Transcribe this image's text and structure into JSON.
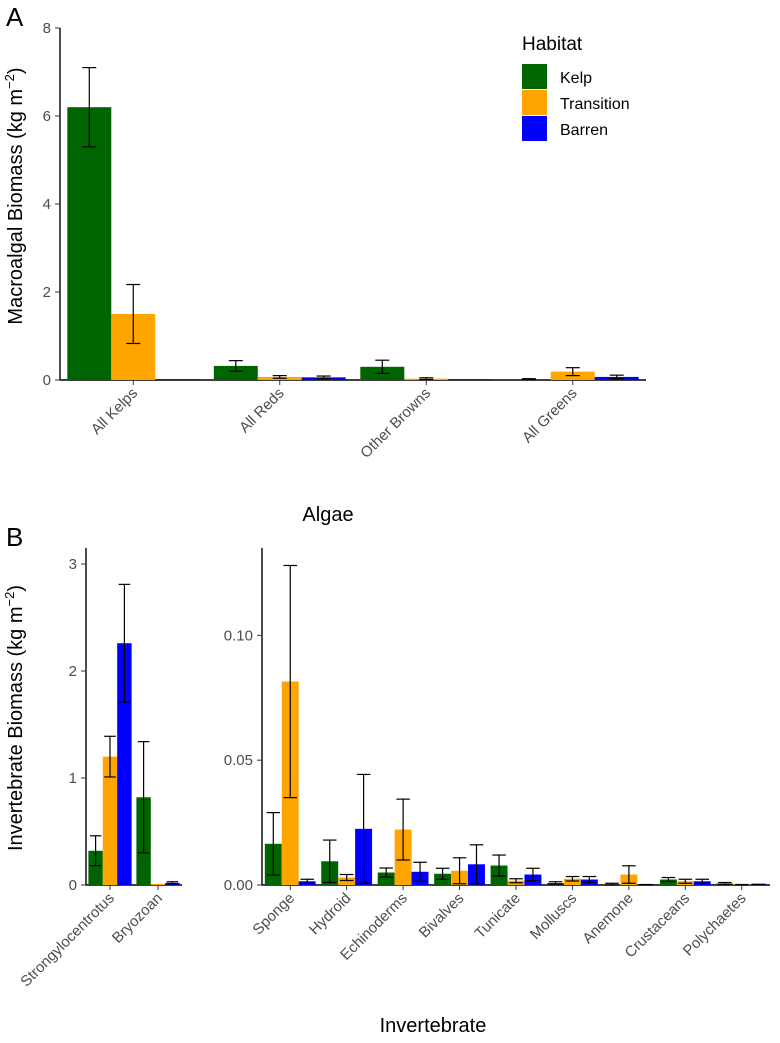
{
  "legend": {
    "title": "Habitat",
    "items": [
      {
        "label": "Kelp",
        "color": "#006400"
      },
      {
        "label": "Transition",
        "color": "#FFA500"
      },
      {
        "label": "Barren",
        "color": "#0000FF"
      }
    ]
  },
  "chart_data": [
    {
      "panel": "A",
      "type": "bar",
      "xlabel": "Algae",
      "ylabel_main": "Macroalgal Biomass (kg m",
      "ylabel_exp": "−2",
      "ylabel_close": ")",
      "ylim": [
        0,
        8
      ],
      "yticks": [
        0,
        2,
        4,
        6,
        8
      ],
      "ytick_labels": [
        "0",
        "2",
        "4",
        "6",
        "8"
      ],
      "categories": [
        "All Kelps",
        "All Reds",
        "Other Browns",
        "All Greens"
      ],
      "series": [
        {
          "name": "Kelp",
          "values": [
            6.2,
            0.32,
            0.3,
            0.02
          ],
          "err": [
            0.9,
            0.12,
            0.15,
            0.01
          ]
        },
        {
          "name": "Transition",
          "values": [
            1.5,
            0.07,
            0.03,
            0.19
          ],
          "err": [
            0.67,
            0.03,
            0.02,
            0.09
          ]
        },
        {
          "name": "Barren",
          "values": [
            0.01,
            0.06,
            0.01,
            0.07
          ],
          "err": [
            0.0,
            0.03,
            0.0,
            0.04
          ]
        }
      ]
    },
    {
      "panel": "B",
      "type": "bar",
      "ylabel_main": "Invertebrate Biomass (kg m",
      "ylabel_exp": "−2",
      "ylabel_close": ")",
      "ylim": [
        0,
        3.15
      ],
      "yticks": [
        0,
        1,
        2,
        3
      ],
      "ytick_labels": [
        "0",
        "1",
        "2",
        "3"
      ],
      "categories": [
        "Strongylocentrotus",
        "Bryozoan"
      ],
      "series": [
        {
          "name": "Kelp",
          "values": [
            0.32,
            0.82
          ],
          "err": [
            0.14,
            0.52
          ]
        },
        {
          "name": "Transition",
          "values": [
            1.2,
            0.01
          ],
          "err": [
            0.19,
            0.0
          ]
        },
        {
          "name": "Barren",
          "values": [
            2.26,
            0.02
          ],
          "err": [
            0.55,
            0.01
          ]
        }
      ]
    },
    {
      "panel": "B",
      "type": "bar",
      "xlabel": "Invertebrate",
      "ylim": [
        0,
        0.135
      ],
      "yticks": [
        0,
        0.05,
        0.1
      ],
      "ytick_labels": [
        "0.00",
        "0.05",
        "0.10"
      ],
      "categories": [
        "Sponge",
        "Hydroid",
        "Echinoderms",
        "Bivalves",
        "Tunicate",
        "Molluscs",
        "Anemone",
        "Crustaceans",
        "Polychaetes"
      ],
      "series": [
        {
          "name": "Kelp",
          "values": [
            0.0165,
            0.0095,
            0.005,
            0.0045,
            0.0078,
            0.0008,
            0.0003,
            0.0022,
            0.0006
          ],
          "err": [
            0.0125,
            0.0085,
            0.0018,
            0.0022,
            0.0042,
            0.0005,
            0.0004,
            0.0008,
            0.0004
          ]
        },
        {
          "name": "Transition",
          "values": [
            0.0815,
            0.003,
            0.0222,
            0.0057,
            0.0017,
            0.0025,
            0.0042,
            0.0015,
            0.0001
          ],
          "err": [
            0.0465,
            0.0012,
            0.0122,
            0.0052,
            0.0008,
            0.0009,
            0.0035,
            0.0008,
            0.0001
          ]
        },
        {
          "name": "Barren",
          "values": [
            0.0015,
            0.0225,
            0.0053,
            0.0083,
            0.0042,
            0.0022,
            0.0001,
            0.0015,
            0.0002
          ],
          "err": [
            0.0008,
            0.0218,
            0.0038,
            0.0078,
            0.0025,
            0.0012,
            0.0001,
            0.0008,
            0.0001
          ]
        }
      ]
    }
  ]
}
